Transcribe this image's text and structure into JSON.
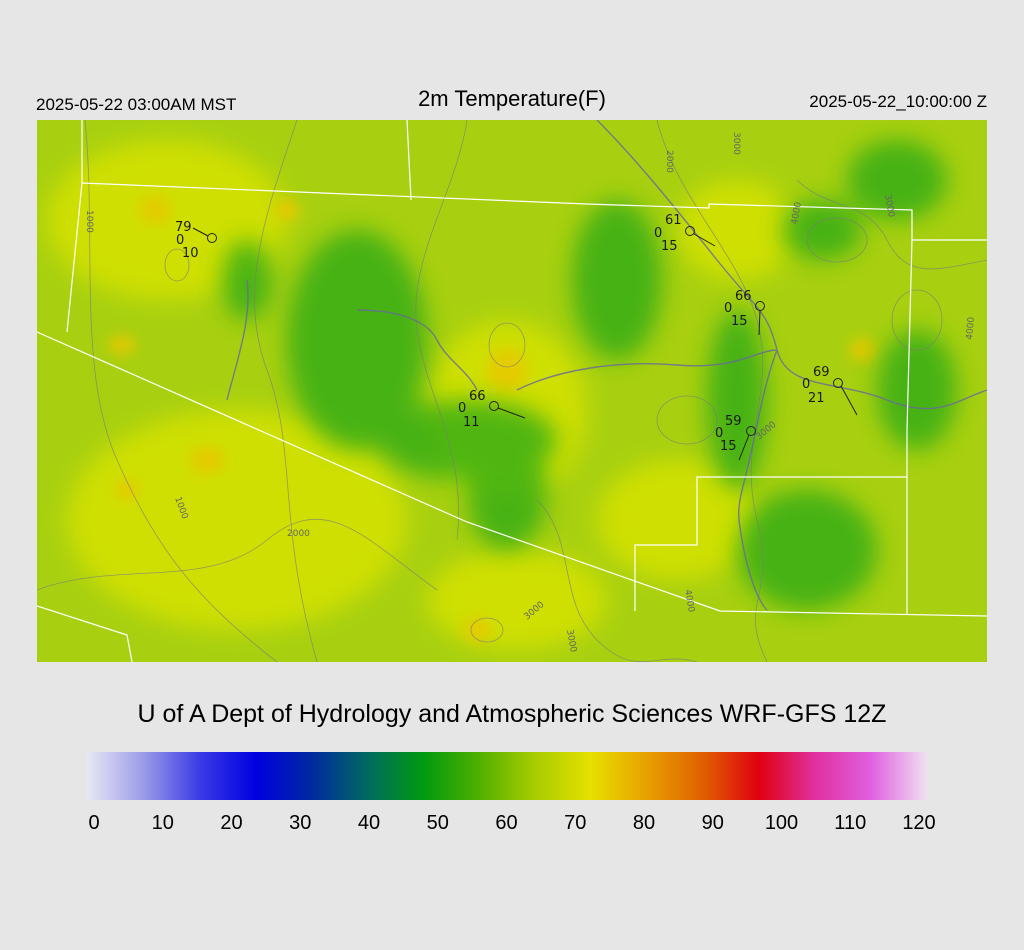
{
  "header": {
    "valid_local": "2025-05-22 03:00AM MST",
    "title": "2m Temperature(F)",
    "valid_utc": "2025-05-22_10:00:00 Z"
  },
  "footer": {
    "credit": "U of A Dept of Hydrology and Atmospheric Sciences WRF-GFS 12Z"
  },
  "colorbar": {
    "tick_labels": [
      "0",
      "10",
      "20",
      "30",
      "40",
      "50",
      "60",
      "70",
      "80",
      "90",
      "100",
      "110",
      "120"
    ],
    "colors": [
      "#e8e8f4",
      "#9c9ce8",
      "#3c3ce6",
      "#0000e0",
      "#0028a0",
      "#006a60",
      "#009a10",
      "#50b000",
      "#a8cc00",
      "#e6e000",
      "#e8a000",
      "#e06000",
      "#e00010",
      "#e030a0",
      "#e060e0",
      "#f0e0f0"
    ]
  },
  "stations": [
    {
      "temp": "79",
      "dew": "0",
      "wind": "10"
    },
    {
      "temp": "61",
      "dew": "0",
      "wind": "15"
    },
    {
      "temp": "66",
      "dew": "0",
      "wind": "15"
    },
    {
      "temp": "69",
      "dew": "0",
      "wind": "21"
    },
    {
      "temp": "66",
      "dew": "0",
      "wind": "11"
    },
    {
      "temp": "59",
      "dew": "0",
      "wind": "15"
    }
  ],
  "contour_labels": [
    "2000",
    "3000",
    "1000",
    "4000",
    "3000",
    "4000",
    "1000",
    "2000",
    "3000",
    "3000",
    "4000",
    "3000"
  ]
}
